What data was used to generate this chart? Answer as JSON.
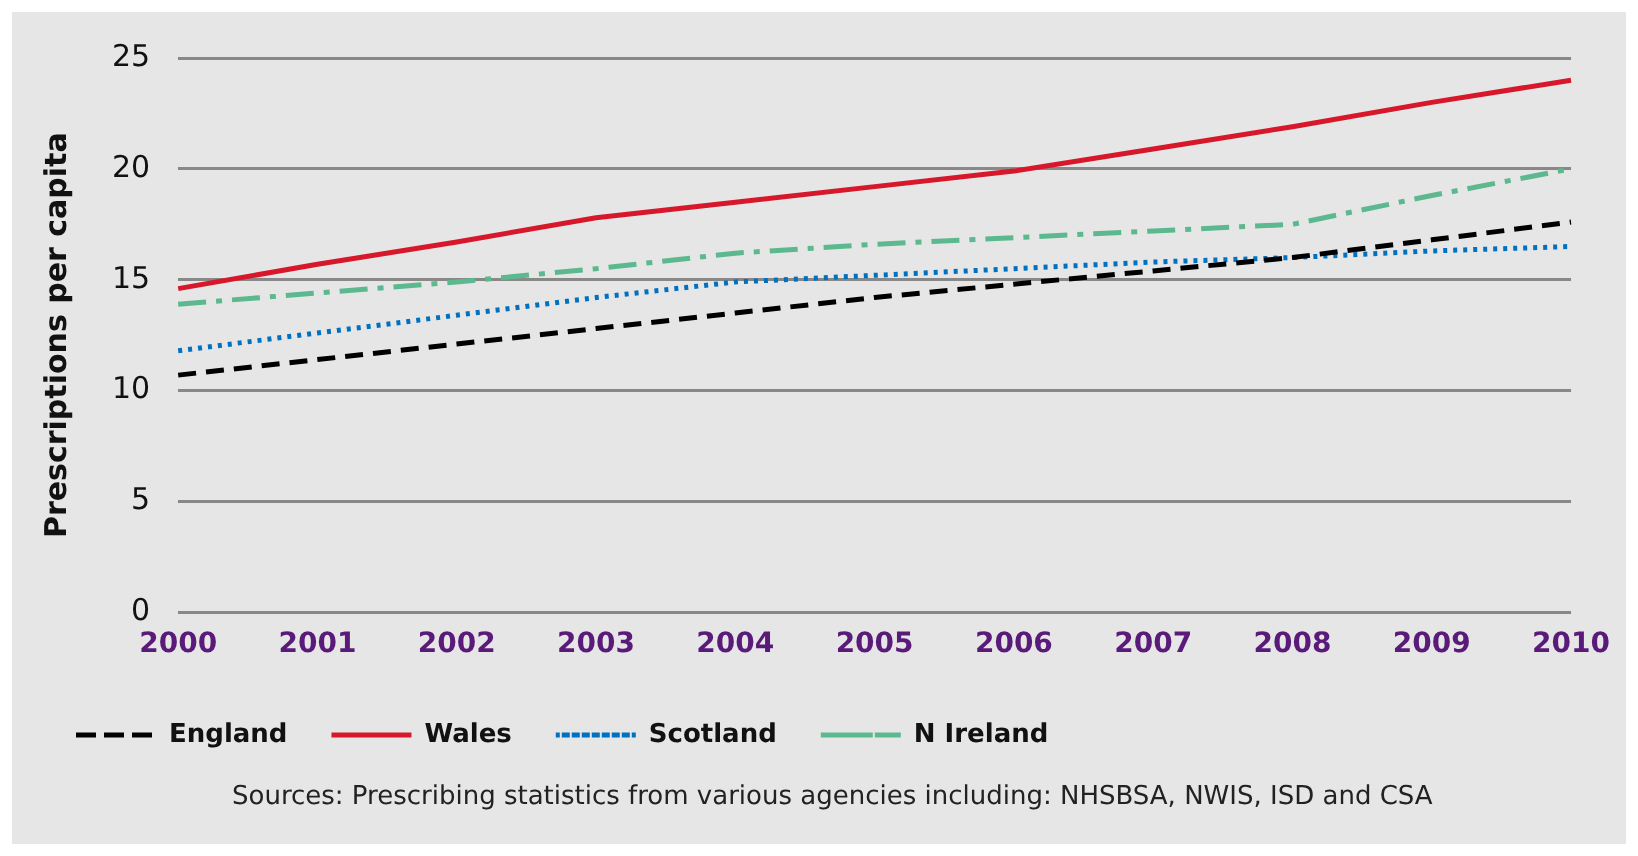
{
  "chart_data": {
    "type": "line",
    "ylabel": "Prescriptions per capita",
    "categories": [
      "2000",
      "2001",
      "2002",
      "2003",
      "2004",
      "2005",
      "2006",
      "2007",
      "2008",
      "2009",
      "2010"
    ],
    "series": [
      {
        "name": "England",
        "color": "#000000",
        "line_style": "dashed",
        "values": [
          10.7,
          11.4,
          12.1,
          12.8,
          13.5,
          14.2,
          14.8,
          15.4,
          16.0,
          16.8,
          17.6
        ]
      },
      {
        "name": "Wales",
        "color": "#d7182a",
        "line_style": "solid",
        "values": [
          14.6,
          15.7,
          16.7,
          17.8,
          18.5,
          19.2,
          19.9,
          20.9,
          21.9,
          23.0,
          24.0
        ]
      },
      {
        "name": "Scotland",
        "color": "#0070c0",
        "line_style": "dotted",
        "values": [
          11.8,
          12.6,
          13.4,
          14.2,
          14.9,
          15.2,
          15.5,
          15.8,
          16.0,
          16.3,
          16.5
        ]
      },
      {
        "name": "N Ireland",
        "color": "#5cb88e",
        "line_style": "dashdot",
        "values": [
          13.9,
          14.4,
          14.9,
          15.5,
          16.2,
          16.6,
          16.9,
          17.2,
          17.5,
          18.8,
          20.0
        ]
      }
    ],
    "ylim": [
      0,
      25
    ],
    "yticks": [
      0,
      5,
      10,
      15,
      20,
      25
    ],
    "grid": "y",
    "legend": "bottom",
    "marker": "none",
    "annotations": [
      "Sources: Prescribing statistics from various agencies including: NHSBSA, NWIS, ISD and CSA"
    ]
  }
}
